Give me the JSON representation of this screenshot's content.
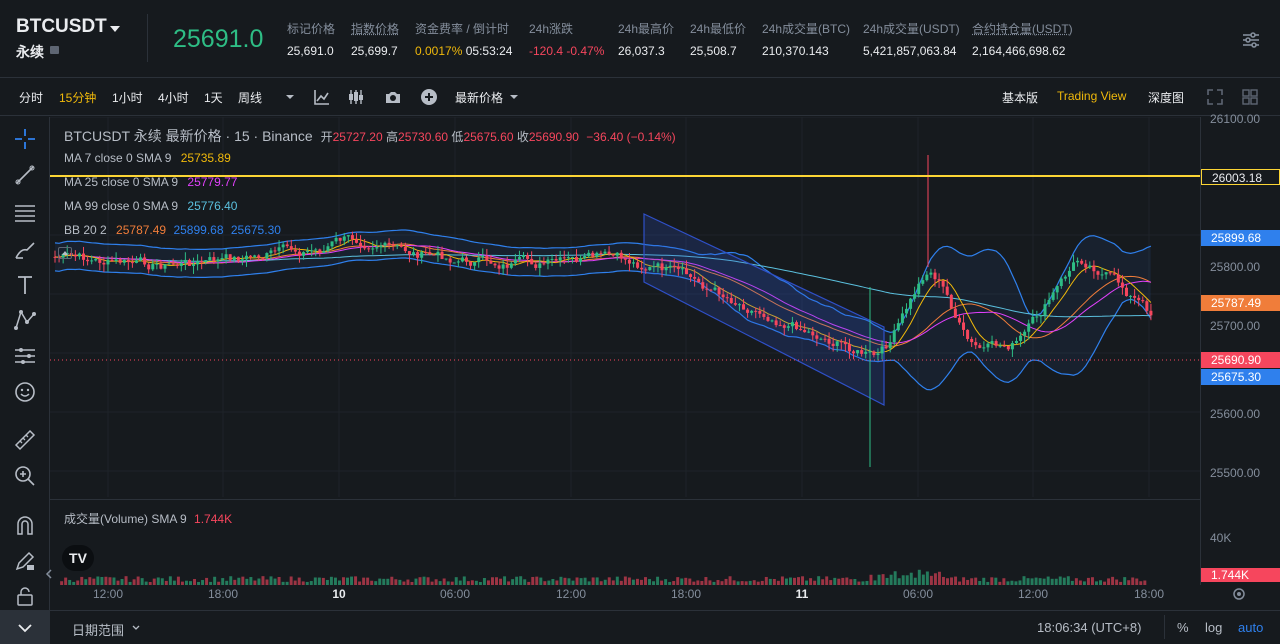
{
  "header": {
    "symbol": "BTCUSDT",
    "subtitle": "永续",
    "last_price": "25691.0",
    "stats": [
      {
        "label": "标记价格",
        "value": "25,691.0",
        "underline": false
      },
      {
        "label": "指数价格",
        "value": "25,699.7",
        "underline": true
      },
      {
        "label": "资金费率 / 倒计时",
        "value_a": "0.0017%",
        "value_b": "05:53:24",
        "underline": false
      },
      {
        "label": "24h涨跌",
        "value": "-120.4 -0.47%",
        "underline": false
      },
      {
        "label": "24h最高价",
        "value": "26,037.3",
        "underline": false
      },
      {
        "label": "24h最低价",
        "value": "25,508.7",
        "underline": false
      },
      {
        "label": "24h成交量(BTC)",
        "value": "210,370.143",
        "underline": false
      },
      {
        "label": "24h成交量(USDT)",
        "value": "5,421,857,063.84",
        "underline": false
      },
      {
        "label": "合约持仓量(USDT)",
        "value": "2,164,466,698.62",
        "underline": true
      }
    ],
    "settings_icon": "sliders-icon"
  },
  "toolbar": {
    "intervals": [
      "分时",
      "15分钟",
      "1小时",
      "4小时",
      "1天",
      "周线"
    ],
    "active_interval": "15分钟",
    "price_type": "最新价格",
    "views": [
      "基本版",
      "Trading View",
      "深度图"
    ],
    "active_view": "Trading View",
    "icons": [
      "chevron-down-icon",
      "indicator-icon",
      "candle-style-icon",
      "camera-icon",
      "plus-circle-icon",
      "fullscreen-icon",
      "grid-icon"
    ]
  },
  "left_tools": [
    "crosshair-icon",
    "trendline-icon",
    "fib-icon",
    "brush-icon",
    "text-icon",
    "pattern-icon",
    "forecast-icon",
    "emoji-icon",
    "ruler-icon",
    "zoom-icon",
    "magnet-icon",
    "pencil-lock-icon",
    "lock-icon",
    "eye-icon"
  ],
  "chart": {
    "title": "BTCUSDT 永续 最新价格 · 15 · Binance",
    "ohlc": {
      "open_label": "开",
      "open": "25727.20",
      "high_label": "高",
      "high": "25730.60",
      "low_label": "低",
      "low": "25675.60",
      "close_label": "收",
      "close": "25690.90",
      "change": "−36.40 (−0.14%)"
    },
    "ma7": {
      "label": "MA 7 close 0 SMA 9",
      "value": "25735.89"
    },
    "ma25": {
      "label": "MA 25 close 0 SMA 9",
      "value": "25779.77"
    },
    "ma99": {
      "label": "MA 99 close 0 SMA 9",
      "value": "25776.40"
    },
    "bb": {
      "label": "BB 20 2",
      "basis": "25787.49",
      "upper": "25899.68",
      "lower": "25675.30"
    },
    "volume": {
      "label": "成交量(Volume) SMA 9",
      "value": "1.744K"
    },
    "horizontal_line": "26003.18",
    "price_labels": {
      "upper": "25899.68",
      "basis": "25787.49",
      "last": "25690.90",
      "lower": "25675.30",
      "volume": "1.744K"
    },
    "y_ticks": [
      "26100.00",
      "25800.00",
      "25700.00",
      "25600.00",
      "25500.00"
    ],
    "vol_ticks": [
      "40K"
    ],
    "x_ticks": [
      {
        "label": "12:00",
        "bold": false
      },
      {
        "label": "18:00",
        "bold": false
      },
      {
        "label": "10",
        "bold": true
      },
      {
        "label": "06:00",
        "bold": false
      },
      {
        "label": "12:00",
        "bold": false
      },
      {
        "label": "18:00",
        "bold": false
      },
      {
        "label": "11",
        "bold": true
      },
      {
        "label": "06:00",
        "bold": false
      },
      {
        "label": "12:00",
        "bold": false
      },
      {
        "label": "18:00",
        "bold": false
      }
    ],
    "colors": {
      "up": "#2ebd85",
      "down": "#f6465d",
      "ma7": "#f0b90b",
      "ma25": "#e040fb",
      "ma99": "#5bc0de",
      "bb": "#2f80ed",
      "hline": "#fcd535"
    }
  },
  "footer": {
    "date_range": "日期范围",
    "time": "18:06:34 (UTC+8)",
    "percent": "%",
    "log": "log",
    "auto": "auto"
  }
}
